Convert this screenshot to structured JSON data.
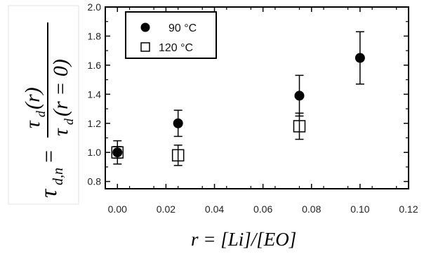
{
  "chart_data": {
    "type": "scatter",
    "xlabel": "r = [Li]/[EO]",
    "ylabel": {
      "lhs": "τ",
      "lhs_sub": "d,n",
      "equals": "=",
      "numerator": "τ",
      "numerator_sub": "d",
      "numerator_arg": "(r)",
      "denominator": "τ",
      "denominator_sub": "d",
      "denominator_arg": "(r = 0)"
    },
    "xlim": [
      -0.005,
      0.12
    ],
    "ylim": [
      0.75,
      2.0
    ],
    "x_ticks": [
      0.0,
      0.02,
      0.04,
      0.06,
      0.08,
      0.1,
      0.12
    ],
    "x_tick_labels": [
      "0.00",
      "0.02",
      "0.04",
      "0.06",
      "0.08",
      "0.10",
      "0.12"
    ],
    "y_ticks": [
      0.8,
      1.0,
      1.2,
      1.4,
      1.6,
      1.8,
      2.0
    ],
    "y_tick_labels": [
      "0.8",
      "1.0",
      "1.2",
      "1.4",
      "1.6",
      "1.8",
      "2.0"
    ],
    "grid": false,
    "legend_position": "top-left",
    "series": [
      {
        "name": "90 °C",
        "marker": "filled-circle",
        "color": "#000000",
        "x": [
          0.0,
          0.025,
          0.075,
          0.1
        ],
        "y": [
          1.0,
          1.2,
          1.39,
          1.65
        ],
        "err": [
          0.08,
          0.09,
          0.14,
          0.18
        ]
      },
      {
        "name": "120 °C",
        "marker": "open-square",
        "color": "#000000",
        "x": [
          0.0,
          0.025,
          0.075
        ],
        "y": [
          1.0,
          0.98,
          1.18
        ],
        "err": [
          0.04,
          0.07,
          0.09
        ]
      }
    ]
  }
}
